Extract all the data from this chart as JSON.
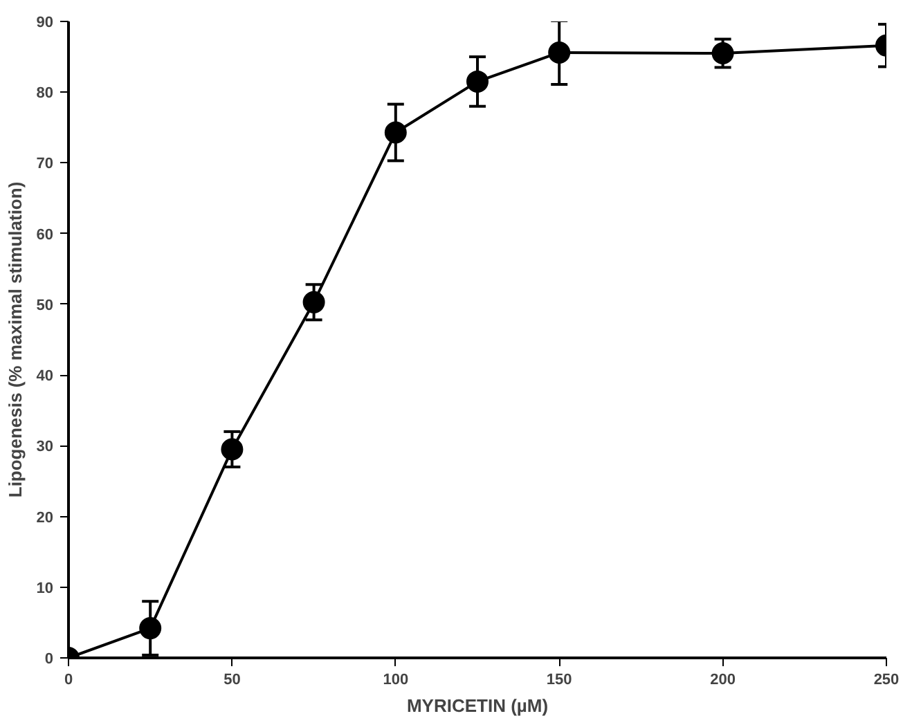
{
  "chart_data": {
    "type": "line",
    "xlabel": "MYRICETIN (µM)",
    "ylabel": "Lipogenesis (% maximal stimulation)",
    "x": [
      0,
      25,
      50,
      75,
      100,
      125,
      150,
      200,
      250
    ],
    "series": [
      {
        "color": "#000000",
        "values": [
          0,
          4.2,
          29.5,
          50.3,
          74.3,
          81.5,
          85.6,
          85.5,
          86.6
        ],
        "errors": [
          0.5,
          3.8,
          2.5,
          2.5,
          4,
          3.5,
          4.5,
          2,
          3
        ]
      }
    ],
    "xlim": [
      0,
      250
    ],
    "ylim": [
      0,
      90
    ],
    "xticks": [
      0,
      50,
      100,
      150,
      200,
      250
    ],
    "yticks": [
      0,
      10,
      20,
      30,
      40,
      50,
      60,
      70,
      80,
      90
    ],
    "marker": "circle",
    "line_style": "solid",
    "grid": false
  }
}
